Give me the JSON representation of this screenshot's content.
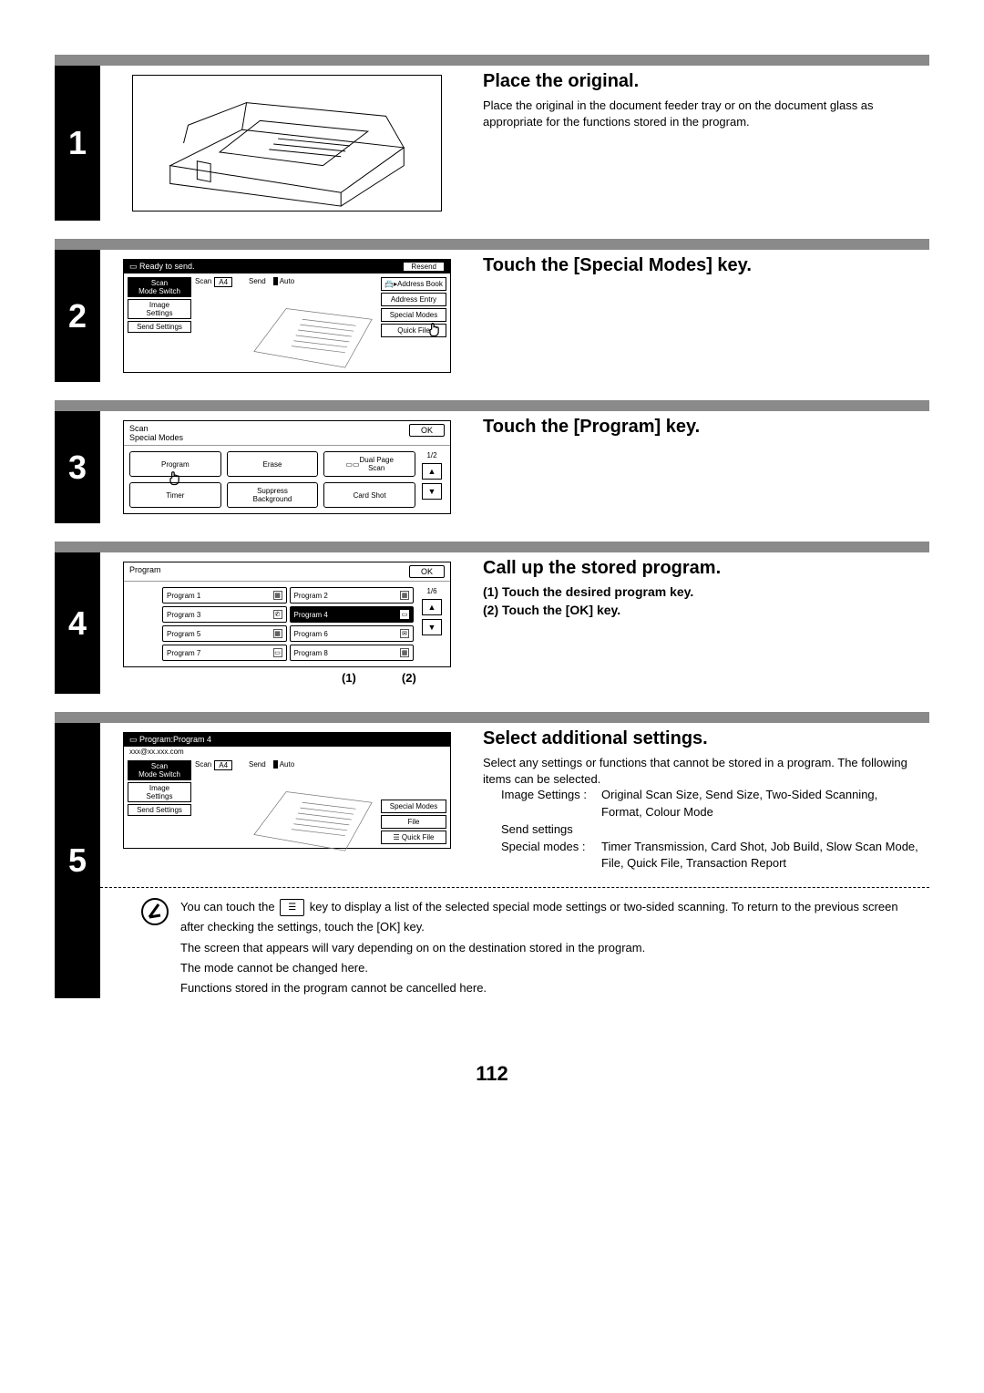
{
  "page_number": "112",
  "steps": {
    "1": {
      "num": "1",
      "title": "Place the original.",
      "desc": "Place the original in the document feeder tray or on the document glass as appropriate for the functions stored in the program."
    },
    "2": {
      "num": "2",
      "title": "Touch the [Special Modes] key.",
      "panel": {
        "status": "Ready to send.",
        "resend": "Resend",
        "left": {
          "scan_mode": "Scan\nMode Switch",
          "image_settings": "Image\nSettings",
          "send_settings": "Send Settings"
        },
        "mid": {
          "scan": "Scan",
          "a4": "A4",
          "send": "Send",
          "auto": "Auto"
        },
        "right": {
          "address_book": "Address Book",
          "address_entry": "Address Entry",
          "special_modes": "Special Modes",
          "quick_file": "Quick File"
        }
      }
    },
    "3": {
      "num": "3",
      "title": "Touch the [Program] key.",
      "panel": {
        "header": "Scan\nSpecial Modes",
        "ok": "OK",
        "page": "1/2",
        "buttons": [
          "Program",
          "Erase",
          "Dual Page\nScan",
          "Timer",
          "Suppress\nBackground",
          "Card Shot"
        ]
      }
    },
    "4": {
      "num": "4",
      "title": "Call up the stored program.",
      "sub1": "(1)  Touch the desired program key.",
      "sub2": "(2)  Touch the [OK] key.",
      "caption1": "(1)",
      "caption2": "(2)",
      "panel": {
        "header": "Program",
        "ok": "OK",
        "page": "1/6",
        "programs": [
          "Program 1",
          "Program 2",
          "Program 3",
          "Program 4",
          "Program 5",
          "Program 6",
          "Program 7",
          "Program 8"
        ],
        "selected_index": 3
      }
    },
    "5": {
      "num": "5",
      "title": "Select additional settings.",
      "desc": "Select any settings or functions that cannot be stored in a program. The following items can be selected.",
      "settings": {
        "image_label": "Image Settings :",
        "image_val": "Original Scan Size, Send Size, Two-Sided Scanning, Format, Colour Mode",
        "send_label": "Send settings",
        "special_label": "Special modes :",
        "special_val": "Timer Transmission, Card Shot, Job Build, Slow Scan Mode, File, Quick File, Transaction Report"
      },
      "panel": {
        "status": "Program:Program 4",
        "sub": "xxx@xx.xxx.com",
        "left": {
          "scan_mode": "Scan\nMode Switch",
          "image_settings": "Image\nSettings",
          "send_settings": "Send Settings"
        },
        "mid": {
          "scan": "Scan",
          "a4": "A4",
          "send": "Send",
          "auto": "Auto"
        },
        "right": {
          "special_modes": "Special Modes",
          "file": "File",
          "quick_file": "Quick File"
        }
      }
    }
  },
  "note": {
    "l1a": "You can touch the ",
    "l1b": " key to display a list of the selected special mode settings or two-sided scanning. To return to the previous screen after checking the settings, touch the [OK] key.",
    "l2": "The screen that appears will vary depending on on the destination stored in the program.",
    "l3": "The mode cannot be changed here.",
    "l4": "Functions stored in the program cannot be cancelled here.",
    "inline_icon": "☰"
  },
  "colors": {
    "strip": "#8a8a8a",
    "black": "#000000",
    "white": "#ffffff"
  }
}
